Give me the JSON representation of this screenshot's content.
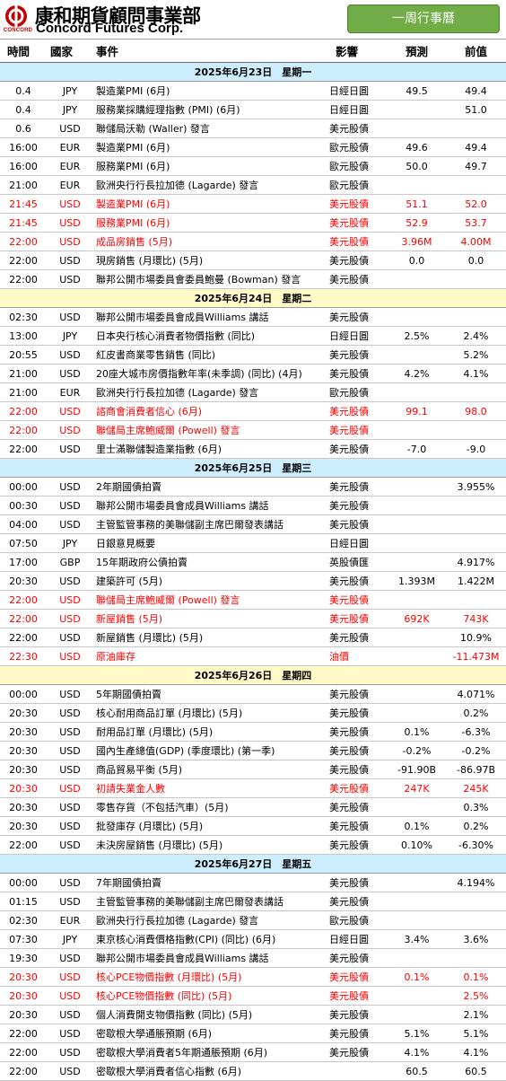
{
  "header": {
    "logo_cn": "康和期貨顧問事業部",
    "logo_en": "Concord Futures Corp.",
    "logo_small": "CONCORD",
    "week_label": "一周行事曆"
  },
  "columns": [
    "時間",
    "國家",
    "事件",
    "影響",
    "預測",
    "前值"
  ],
  "colors": {
    "accent_green": "#70ad47",
    "highlight_red": "#ff0000",
    "day_bar_colors": [
      "#cceeff",
      "#fffac8"
    ]
  },
  "days": [
    {
      "title": "2025年6月23日　星期一",
      "rows": [
        {
          "time": "0.4",
          "cur": "JPY",
          "event": "製造業PMI (6月)",
          "impact": "日經日圓",
          "forecast": "49.5",
          "prior": "49.4",
          "hl": false
        },
        {
          "time": "0.4",
          "cur": "JPY",
          "event": "服務業採購經理指數 (PMI) (6月)",
          "impact": "日經日圓",
          "forecast": "",
          "prior": "51.0",
          "hl": false
        },
        {
          "time": "0.6",
          "cur": "USD",
          "event": "聯儲局沃勒 (Waller) 發言",
          "impact": "美元股債",
          "forecast": "",
          "prior": "",
          "hl": false
        },
        {
          "time": "16:00",
          "cur": "EUR",
          "event": "製造業PMI (6月)",
          "impact": "歐元股債",
          "forecast": "49.6",
          "prior": "49.4",
          "hl": false
        },
        {
          "time": "16:00",
          "cur": "EUR",
          "event": "服務業PMI (6月)",
          "impact": "歐元股債",
          "forecast": "50.0",
          "prior": "49.7",
          "hl": false
        },
        {
          "time": "21:00",
          "cur": "EUR",
          "event": "歐洲央行行長拉加德 (Lagarde) 發言",
          "impact": "歐元股債",
          "forecast": "",
          "prior": "",
          "hl": false
        },
        {
          "time": "21:45",
          "cur": "USD",
          "event": "製造業PMI (6月)",
          "impact": "美元股債",
          "forecast": "51.1",
          "prior": "52.0",
          "hl": true
        },
        {
          "time": "21:45",
          "cur": "USD",
          "event": "服務業PMI (6月)",
          "impact": "美元股債",
          "forecast": "52.9",
          "prior": "53.7",
          "hl": true
        },
        {
          "time": "22:00",
          "cur": "USD",
          "event": "成品房銷售 (5月)",
          "impact": "美元股債",
          "forecast": "3.96M",
          "prior": "4.00M",
          "hl": true
        },
        {
          "time": "22:00",
          "cur": "USD",
          "event": "現房銷售 (月環比) (5月)",
          "impact": "美元股債",
          "forecast": "0.0",
          "prior": "0.0",
          "hl": false
        },
        {
          "time": "22:00",
          "cur": "USD",
          "event": "聯邦公開市場委員會委員鮑曼 (Bowman) 發言",
          "impact": "美元股債",
          "forecast": "",
          "prior": "",
          "hl": false
        }
      ]
    },
    {
      "title": "2025年6月24日　星期二",
      "rows": [
        {
          "time": "02:30",
          "cur": "USD",
          "event": "聯邦公開市場委員會成員Williams 講話",
          "impact": "美元股債",
          "forecast": "",
          "prior": "",
          "hl": false
        },
        {
          "time": "13:00",
          "cur": "JPY",
          "event": "日本央行核心消費者物價指數 (同比)",
          "impact": "日經日圓",
          "forecast": "2.5%",
          "prior": "2.4%",
          "hl": false
        },
        {
          "time": "20:55",
          "cur": "USD",
          "event": "紅皮書商業零售銷售 (同比)",
          "impact": "美元股債",
          "forecast": "",
          "prior": "5.2%",
          "hl": false
        },
        {
          "time": "21:00",
          "cur": "USD",
          "event": "20座大城市房價指數年率(未季調) (同比) (4月)",
          "impact": "美元股債",
          "forecast": "4.2%",
          "prior": "4.1%",
          "hl": false
        },
        {
          "time": "21:00",
          "cur": "EUR",
          "event": "歐洲央行行長拉加德 (Lagarde) 發言",
          "impact": "歐元股債",
          "forecast": "",
          "prior": "",
          "hl": false
        },
        {
          "time": "22:00",
          "cur": "USD",
          "event": "諮商會消費者信心 (6月)",
          "impact": "美元股債",
          "forecast": "99.1",
          "prior": "98.0",
          "hl": true
        },
        {
          "time": "22:00",
          "cur": "USD",
          "event": "聯儲局主席鮑威爾 (Powell) 發言",
          "impact": "美元股債",
          "forecast": "",
          "prior": "",
          "hl": true
        },
        {
          "time": "22:00",
          "cur": "USD",
          "event": "里士滿聯儲製造業指數 (6月)",
          "impact": "美元股債",
          "forecast": "-7.0",
          "prior": "-9.0",
          "hl": false
        }
      ]
    },
    {
      "title": "2025年6月25日　星期三",
      "rows": [
        {
          "time": "00:00",
          "cur": "USD",
          "event": "2年期國債拍賣",
          "impact": "美元股債",
          "forecast": "",
          "prior": "3.955%",
          "hl": false
        },
        {
          "time": "00:30",
          "cur": "USD",
          "event": "聯邦公開市場委員會成員Williams 講話",
          "impact": "美元股債",
          "forecast": "",
          "prior": "",
          "hl": false
        },
        {
          "time": "04:00",
          "cur": "USD",
          "event": "主管監管事務的美聯儲副主席巴爾發表講話",
          "impact": "美元股債",
          "forecast": "",
          "prior": "",
          "hl": false
        },
        {
          "time": "07:50",
          "cur": "JPY",
          "event": "日銀意見概要",
          "impact": "日經日圓",
          "forecast": "",
          "prior": "",
          "hl": false
        },
        {
          "time": "17:00",
          "cur": "GBP",
          "event": "15年期政府公債拍賣",
          "impact": "英股債匯",
          "forecast": "",
          "prior": "4.917%",
          "hl": false
        },
        {
          "time": "20:30",
          "cur": "USD",
          "event": "建築許可 (5月)",
          "impact": "美元股債",
          "forecast": "1.393M",
          "prior": "1.422M",
          "hl": false
        },
        {
          "time": "22:00",
          "cur": "USD",
          "event": "聯儲局主席鮑威爾 (Powell) 發言",
          "impact": "美元股債",
          "forecast": "",
          "prior": "",
          "hl": true
        },
        {
          "time": "22:00",
          "cur": "USD",
          "event": "新屋銷售 (5月)",
          "impact": "美元股債",
          "forecast": "692K",
          "prior": "743K",
          "hl": true
        },
        {
          "time": "22:00",
          "cur": "USD",
          "event": "新屋銷售 (月環比) (5月)",
          "impact": "美元股債",
          "forecast": "",
          "prior": "10.9%",
          "hl": false
        },
        {
          "time": "22:30",
          "cur": "USD",
          "event": "原油庫存",
          "impact": "油價",
          "forecast": "",
          "prior": "-11.473M",
          "hl": true
        }
      ]
    },
    {
      "title": "2025年6月26日　星期四",
      "rows": [
        {
          "time": "00:00",
          "cur": "USD",
          "event": "5年期國債拍賣",
          "impact": "美元股債",
          "forecast": "",
          "prior": "4.071%",
          "hl": false
        },
        {
          "time": "20:30",
          "cur": "USD",
          "event": "核心耐用商品訂單 (月環比) (5月)",
          "impact": "美元股債",
          "forecast": "",
          "prior": "0.2%",
          "hl": false
        },
        {
          "time": "20:30",
          "cur": "USD",
          "event": "耐用品訂單 (月環比) (5月)",
          "impact": "美元股債",
          "forecast": "0.1%",
          "prior": "-6.3%",
          "hl": false
        },
        {
          "time": "20:30",
          "cur": "USD",
          "event": "國內生產總值(GDP) (季度環比) (第一季)",
          "impact": "美元股債",
          "forecast": "-0.2%",
          "prior": "-0.2%",
          "hl": false
        },
        {
          "time": "20:30",
          "cur": "USD",
          "event": "商品貿易平衡 (5月)",
          "impact": "美元股債",
          "forecast": "-91.90B",
          "prior": "-86.97B",
          "hl": false
        },
        {
          "time": "20:30",
          "cur": "USD",
          "event": "初請失業金人數",
          "impact": "美元股債",
          "forecast": "247K",
          "prior": "245K",
          "hl": true
        },
        {
          "time": "20:30",
          "cur": "USD",
          "event": "零售存貨（不包括汽車）(5月)",
          "impact": "美元股債",
          "forecast": "",
          "prior": "0.3%",
          "hl": false
        },
        {
          "time": "20:30",
          "cur": "USD",
          "event": "批發庫存 (月環比) (5月)",
          "impact": "美元股債",
          "forecast": "0.1%",
          "prior": "0.2%",
          "hl": false
        },
        {
          "time": "22:00",
          "cur": "USD",
          "event": "未決房屋銷售 (月環比) (5月)",
          "impact": "美元股債",
          "forecast": "0.10%",
          "prior": "-6.30%",
          "hl": false
        }
      ]
    },
    {
      "title": "2025年6月27日　星期五",
      "rows": [
        {
          "time": "00:00",
          "cur": "USD",
          "event": "7年期國債拍賣",
          "impact": "美元股債",
          "forecast": "",
          "prior": "4.194%",
          "hl": false
        },
        {
          "time": "01:15",
          "cur": "USD",
          "event": "主管監管事務的美聯儲副主席巴爾發表講話",
          "impact": "美元股債",
          "forecast": "",
          "prior": "",
          "hl": false
        },
        {
          "time": "02:30",
          "cur": "EUR",
          "event": "歐洲央行行長拉加德 (Lagarde) 發言",
          "impact": "歐元股債",
          "forecast": "",
          "prior": "",
          "hl": false
        },
        {
          "time": "07:30",
          "cur": "JPY",
          "event": "東京核心消費價格指數(CPI) (同比) (6月)",
          "impact": "日經日圓",
          "forecast": "3.4%",
          "prior": "3.6%",
          "hl": false
        },
        {
          "time": "19:30",
          "cur": "USD",
          "event": "聯邦公開市場委員會成員Williams 講話",
          "impact": "美元股債",
          "forecast": "",
          "prior": "",
          "hl": false
        },
        {
          "time": "20:30",
          "cur": "USD",
          "event": "核心PCE物價指數 (月環比) (5月)",
          "impact": "美元股債",
          "forecast": "0.1%",
          "prior": "0.1%",
          "hl": true
        },
        {
          "time": "20:30",
          "cur": "USD",
          "event": "核心PCE物價指數 (同比) (5月)",
          "impact": "美元股債",
          "forecast": "",
          "prior": "2.5%",
          "hl": true
        },
        {
          "time": "20:30",
          "cur": "USD",
          "event": "個人消費開支物價指數 (同比) (5月)",
          "impact": "美元股債",
          "forecast": "",
          "prior": "2.1%",
          "hl": false
        },
        {
          "time": "22:00",
          "cur": "USD",
          "event": "密歇根大學通脹預期 (6月)",
          "impact": "美元股債",
          "forecast": "5.1%",
          "prior": "5.1%",
          "hl": false
        },
        {
          "time": "22:00",
          "cur": "USD",
          "event": "密歇根大學消費者5年期通脹預期 (6月)",
          "impact": "美元股債",
          "forecast": "4.1%",
          "prior": "4.1%",
          "hl": false
        },
        {
          "time": "22:00",
          "cur": "USD",
          "event": "密歇根大學消費者信心指數 (6月)",
          "impact": "",
          "forecast": "60.5",
          "prior": "60.5",
          "hl": false
        }
      ]
    }
  ]
}
